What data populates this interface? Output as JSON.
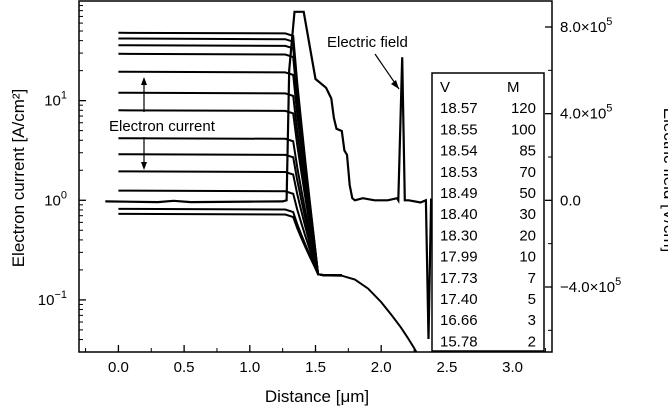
{
  "chart_data": {
    "type": "line",
    "x_axis": {
      "label": "Distance [μm]",
      "range": [
        -0.3,
        3.3
      ],
      "ticks": [
        0.0,
        0.5,
        1.0,
        1.5,
        2.0,
        2.5,
        3.0
      ],
      "tick_labels": [
        "0.0",
        "0.5",
        "1.0",
        "1.5",
        "2.0",
        "2.5",
        "3.0"
      ]
    },
    "y_left": {
      "label": "Electron current [A/cm²]",
      "scale": "log",
      "range": [
        0.03,
        100
      ],
      "ticks": [
        {
          "value": 0.1,
          "base": "10",
          "exp": "−1"
        },
        {
          "value": 1,
          "base": "10",
          "exp": "0"
        },
        {
          "value": 10,
          "base": "10",
          "exp": "1"
        }
      ]
    },
    "y_right": {
      "label": "Electric field [V/cm]",
      "scale": "linear",
      "range": [
        -700000.0,
        920000.0
      ],
      "ticks": [
        {
          "value": 800000,
          "text": "8.0×10",
          "exp": "5"
        },
        {
          "value": 400000,
          "text": "4.0×10",
          "exp": "5"
        },
        {
          "value": 0,
          "text": "0.0",
          "exp": ""
        },
        {
          "value": -400000,
          "text": "−4.0×10",
          "exp": "5"
        }
      ]
    },
    "annotations": {
      "electric_field": "Electric field",
      "electron_current": "Electron current"
    },
    "table": {
      "headers": [
        "V",
        "M"
      ],
      "rows": [
        [
          "18.57",
          "120"
        ],
        [
          "18.55",
          "100"
        ],
        [
          "18.54",
          "85"
        ],
        [
          "18.53",
          "70"
        ],
        [
          "18.49",
          "50"
        ],
        [
          "18.40",
          "30"
        ],
        [
          "18.30",
          "20"
        ],
        [
          "17.99",
          "10"
        ],
        [
          "17.73",
          "7"
        ],
        [
          "17.40",
          "5"
        ],
        [
          "16.66",
          "3"
        ],
        [
          "15.78",
          "2"
        ]
      ]
    },
    "current_series": [
      {
        "plateau": 48.0,
        "bend_start": 1.27,
        "tail": 0.176,
        "knee": 1.52
      },
      {
        "plateau": 42.0,
        "bend_start": 1.27,
        "tail": 0.176,
        "knee": 1.52
      },
      {
        "plateau": 36.0,
        "bend_start": 1.27,
        "tail": 0.176,
        "knee": 1.52
      },
      {
        "plateau": 29.5,
        "bend_start": 1.27,
        "tail": 0.176,
        "knee": 1.52
      },
      {
        "plateau": 19.5,
        "bend_start": 1.27,
        "tail": 0.176,
        "knee": 1.52
      },
      {
        "plateau": 12.0,
        "bend_start": 1.27,
        "tail": 0.176,
        "knee": 1.52
      },
      {
        "plateau": 8.0,
        "bend_start": 1.27,
        "tail": 0.176,
        "knee": 1.52
      },
      {
        "plateau": 4.2,
        "bend_start": 1.27,
        "tail": 0.176,
        "knee": 1.52
      },
      {
        "plateau": 2.9,
        "bend_start": 1.27,
        "tail": 0.176,
        "knee": 1.52
      },
      {
        "plateau": 1.95,
        "bend_start": 1.27,
        "tail": 0.176,
        "knee": 1.52
      },
      {
        "plateau": 1.25,
        "bend_start": 1.27,
        "tail": 0.176,
        "knee": 1.52
      },
      {
        "plateau": 0.82,
        "bend_start": 1.27,
        "tail": 0.176,
        "knee": 1.52
      },
      {
        "plateau": 0.73,
        "bend_start": 1.27,
        "tail": 0.176,
        "knee": 1.52
      }
    ],
    "electric_field_series": {
      "name": "Electric field",
      "points": [
        [
          -0.1,
          -5000
        ],
        [
          0.3,
          -8000
        ],
        [
          0.42,
          -2000
        ],
        [
          0.55,
          -8000
        ],
        [
          1.0,
          -6000
        ],
        [
          1.25,
          -5000
        ],
        [
          1.28,
          0
        ],
        [
          1.3,
          600000
        ],
        [
          1.34,
          870000
        ],
        [
          1.41,
          870000
        ],
        [
          1.5,
          560000
        ],
        [
          1.58,
          520000
        ],
        [
          1.62,
          470000
        ],
        [
          1.64,
          380000
        ],
        [
          1.66,
          330000
        ],
        [
          1.7,
          320000
        ],
        [
          1.72,
          230000
        ],
        [
          1.74,
          210000
        ],
        [
          1.76,
          70000
        ],
        [
          1.78,
          10000
        ],
        [
          1.8,
          0
        ],
        [
          1.86,
          10000
        ],
        [
          1.95,
          0
        ],
        [
          2.05,
          0
        ],
        [
          2.12,
          10000
        ],
        [
          2.13,
          0
        ],
        [
          2.16,
          660000
        ],
        [
          2.18,
          0
        ],
        [
          2.21,
          0
        ],
        [
          2.3,
          -10000
        ],
        [
          2.32,
          -5000
        ],
        [
          2.34,
          0
        ],
        [
          2.36,
          -640000
        ],
        [
          2.38,
          0
        ],
        [
          2.4,
          -10000
        ],
        [
          2.45,
          -2000
        ]
      ]
    },
    "falling_branch": {
      "points": [
        [
          1.55,
          0.176
        ],
        [
          1.7,
          0.175
        ],
        [
          1.8,
          0.16
        ],
        [
          1.9,
          0.13
        ],
        [
          2.0,
          0.095
        ],
        [
          2.08,
          0.07
        ],
        [
          2.15,
          0.053
        ],
        [
          2.2,
          0.042
        ],
        [
          2.25,
          0.033
        ],
        [
          2.28,
          0.028
        ]
      ]
    }
  }
}
